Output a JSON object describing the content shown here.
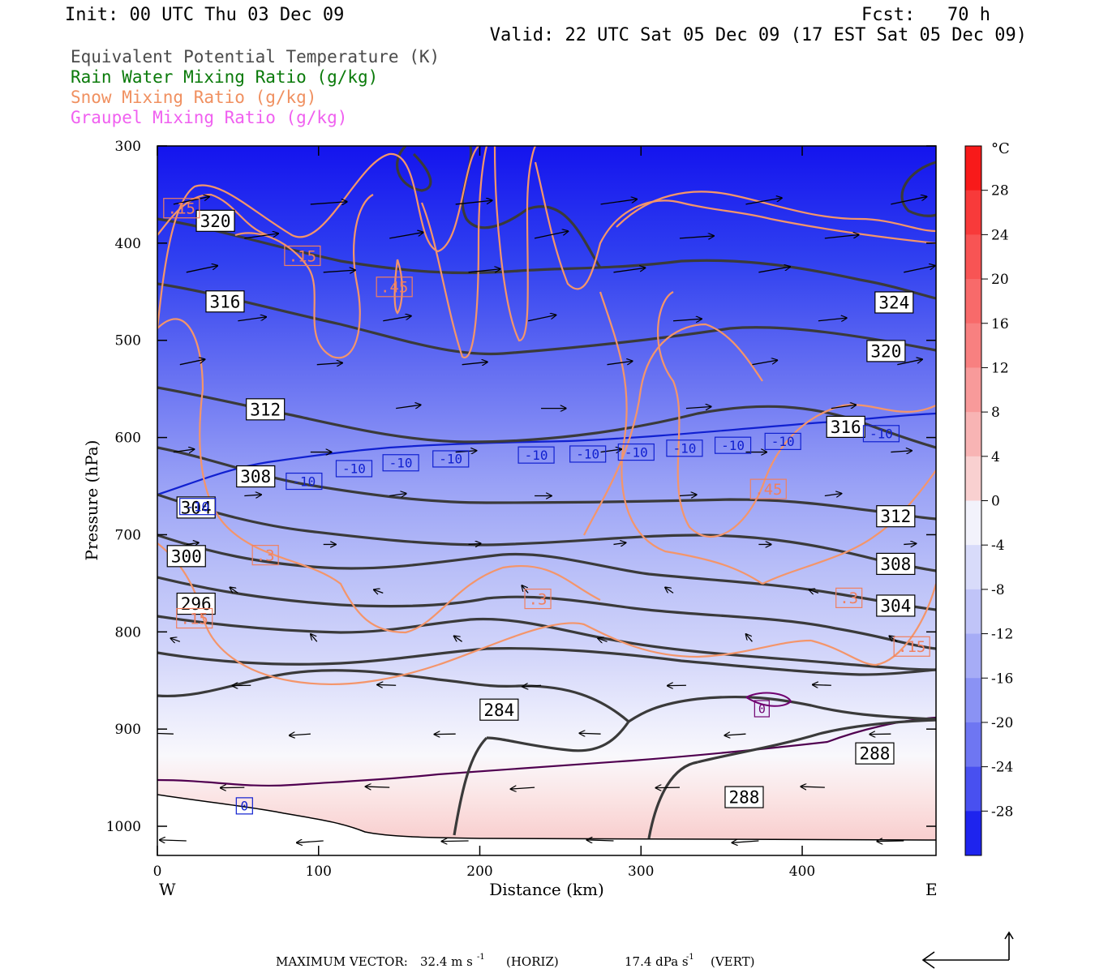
{
  "header": {
    "init": "Init: 00 UTC Thu 03 Dec 09",
    "fcst": "Fcst:   70 h",
    "valid": "Valid: 22 UTC Sat 05 Dec 09 (17 EST Sat 05 Dec 09)"
  },
  "legend": [
    {
      "text": "Equivalent Potential Temperature (K)",
      "color": "#4a4a4a"
    },
    {
      "text": "Rain Water Mixing Ratio (g/kg)",
      "color": "#0a7a0a"
    },
    {
      "text": "Snow Mixing Ratio (g/kg)",
      "color": "#f09060"
    },
    {
      "text": "Graupel Mixing Ratio (g/kg)",
      "color": "#f060f0"
    }
  ],
  "footer": {
    "max_vector_label": "MAXIMUM VECTOR:",
    "horiz": "32.4 m s",
    "horiz_unit": "(HORIZ)",
    "vert": "17.4 dPa s",
    "vert_unit": "(VERT)",
    "exp": "-1"
  },
  "chart_data": {
    "type": "heatmap",
    "xlabel": "Distance (km)",
    "ylabel": "Pressure (hPa)",
    "x_ticks": [
      0,
      100,
      200,
      300,
      400
    ],
    "y_ticks": [
      300,
      400,
      500,
      600,
      700,
      800,
      900,
      1000
    ],
    "xlim": [
      0,
      483
    ],
    "ylim": [
      300,
      1030
    ],
    "left_end": "W",
    "right_end": "E",
    "colorbar": {
      "unit": "°C",
      "range": [
        -32,
        32
      ],
      "labels": [
        28,
        24,
        20,
        16,
        12,
        8,
        4,
        0,
        -4,
        -8,
        -12,
        -16,
        -20,
        -24,
        -28
      ]
    },
    "theta_e_labels": [
      {
        "text": "320",
        "x": 36,
        "p": 377
      },
      {
        "text": "316",
        "x": 42,
        "p": 460
      },
      {
        "text": "312",
        "x": 67,
        "p": 571
      },
      {
        "text": "308",
        "x": 61,
        "p": 640
      },
      {
        "text": "304",
        "x": 24,
        "p": 672
      },
      {
        "text": "300",
        "x": 18,
        "p": 722
      },
      {
        "text": "296",
        "x": 24,
        "p": 771
      },
      {
        "text": "284",
        "x": 212,
        "p": 880
      },
      {
        "text": "324",
        "x": 457,
        "p": 461
      },
      {
        "text": "320",
        "x": 452,
        "p": 511
      },
      {
        "text": "316",
        "x": 427,
        "p": 589
      },
      {
        "text": "312",
        "x": 458,
        "p": 681
      },
      {
        "text": "308",
        "x": 458,
        "p": 730
      },
      {
        "text": "304",
        "x": 458,
        "p": 773
      },
      {
        "text": "288",
        "x": 445,
        "p": 925
      },
      {
        "text": "288",
        "x": 364,
        "p": 970
      }
    ],
    "isotherm_labels": [
      {
        "text": "-10",
        "x": 25,
        "p": 671
      },
      {
        "text": "-10",
        "x": 91,
        "p": 645
      },
      {
        "text": "-10",
        "x": 122,
        "p": 632
      },
      {
        "text": "-10",
        "x": 151,
        "p": 626
      },
      {
        "text": "-10",
        "x": 182,
        "p": 622
      },
      {
        "text": "-10",
        "x": 235,
        "p": 618
      },
      {
        "text": "-10",
        "x": 267,
        "p": 617
      },
      {
        "text": "-10",
        "x": 297,
        "p": 615
      },
      {
        "text": "-10",
        "x": 327,
        "p": 611
      },
      {
        "text": "-10",
        "x": 357,
        "p": 608
      },
      {
        "text": "-10",
        "x": 388,
        "p": 604
      },
      {
        "text": "-10",
        "x": 449,
        "p": 596
      },
      {
        "text": "0",
        "x": 54,
        "p": 979
      }
    ],
    "snow_labels": [
      {
        "text": ".15",
        "x": 15,
        "p": 364
      },
      {
        "text": ".15",
        "x": 90,
        "p": 413
      },
      {
        "text": ".45",
        "x": 147,
        "p": 445
      },
      {
        "text": ".3",
        "x": 67,
        "p": 721
      },
      {
        "text": ".3",
        "x": 236,
        "p": 766
      },
      {
        "text": ".45",
        "x": 379,
        "p": 653
      },
      {
        "text": ".3",
        "x": 429,
        "p": 765
      },
      {
        "text": ".15",
        "x": 23,
        "p": 786
      },
      {
        "text": ".15",
        "x": 468,
        "p": 815
      }
    ],
    "graupel_labels": [
      {
        "text": "0",
        "x": 375,
        "p": 879
      }
    ]
  }
}
